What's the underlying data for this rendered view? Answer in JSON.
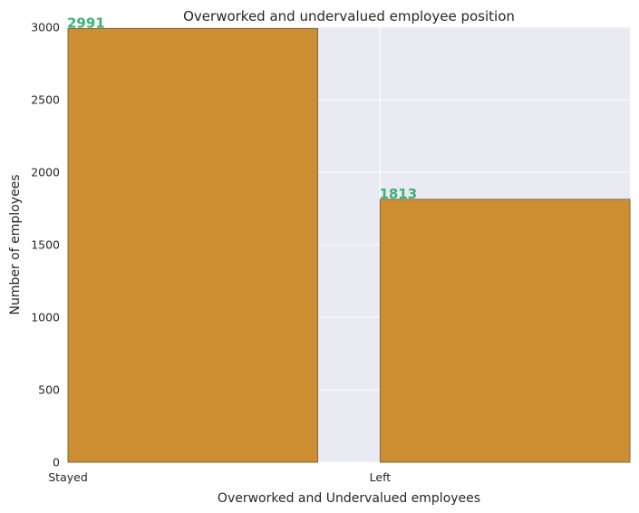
{
  "chart_data": {
    "type": "bar",
    "title": "Overworked and undervalued employee position",
    "xlabel": "Overworked and Undervalued employees",
    "ylabel": "Number of employees",
    "categories": [
      "Stayed",
      "Left"
    ],
    "values": [
      2991,
      1813
    ],
    "data_labels": [
      "2991",
      "1813"
    ],
    "ylim": [
      0,
      3000
    ],
    "yticks": [
      "0",
      "500",
      "1000",
      "1500",
      "2000",
      "2500",
      "3000"
    ],
    "grid": true,
    "colors": {
      "bar": "#CD8E32",
      "bar_edge": "#7A6A45",
      "plot_background": "#EAEAF2",
      "grid": "#FFFFFF",
      "data_label": "#3CB371"
    }
  }
}
